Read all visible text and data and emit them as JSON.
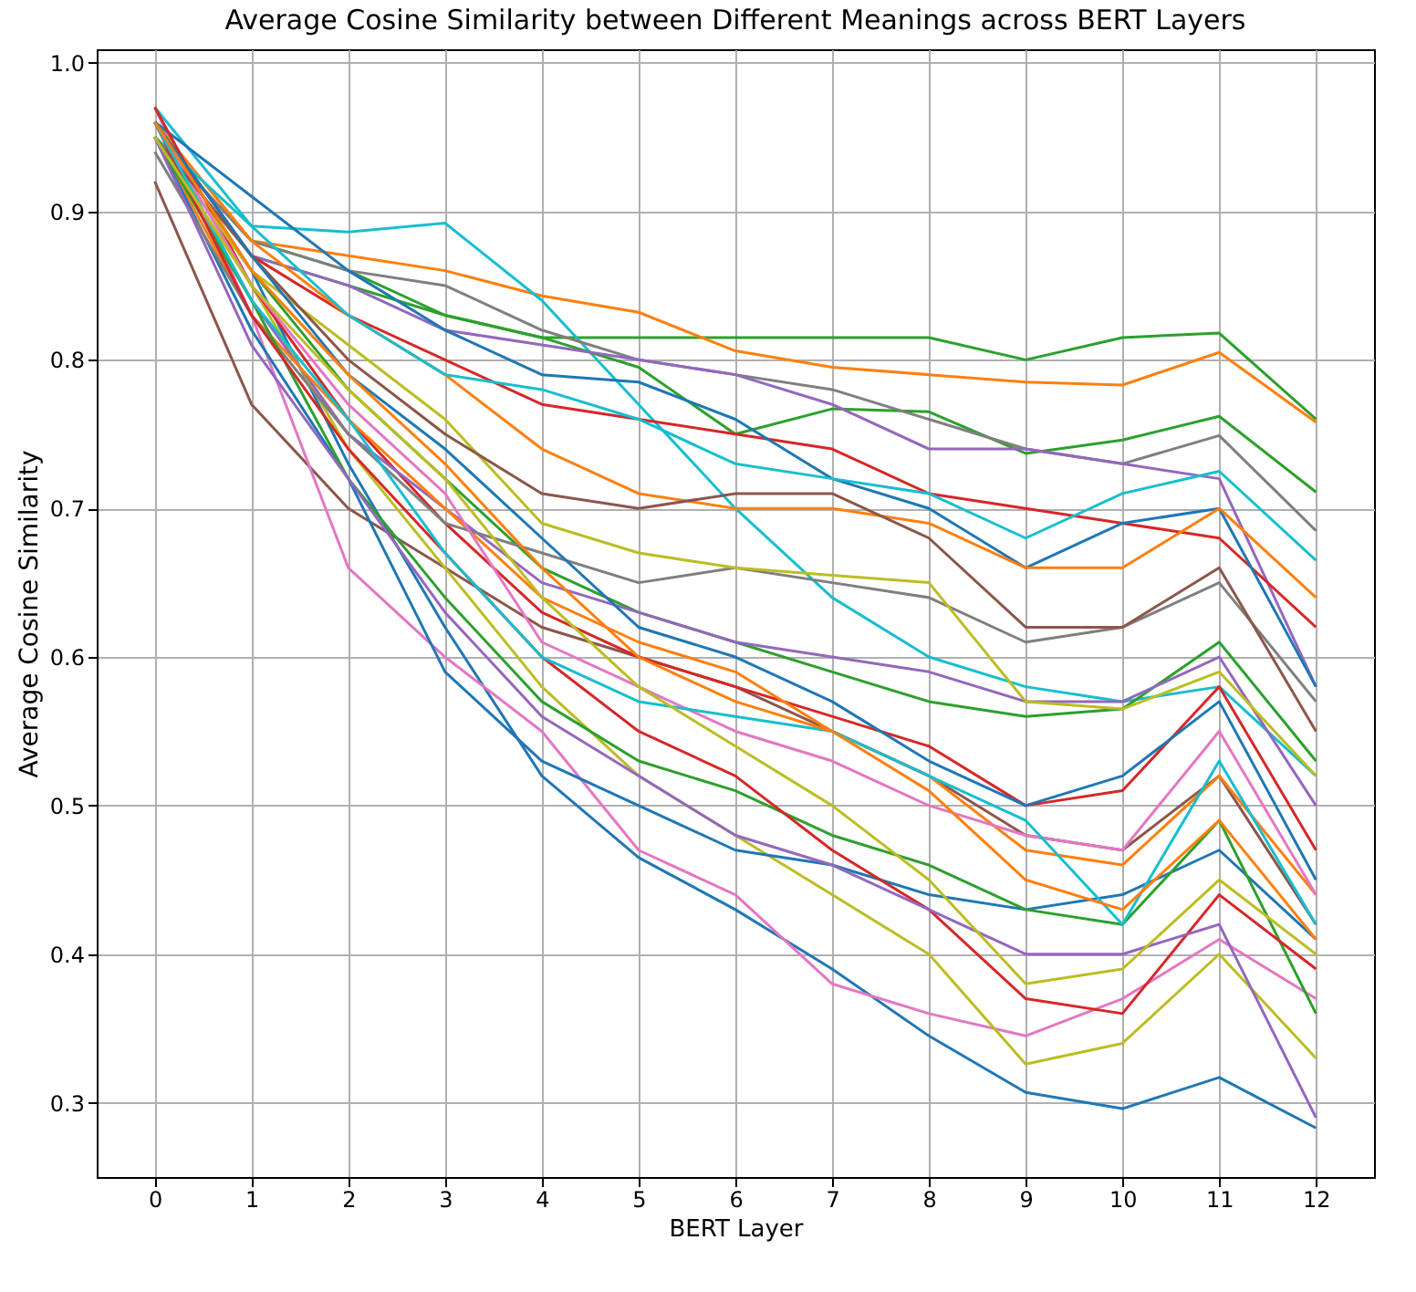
{
  "chart_data": {
    "type": "line",
    "title": "Average Cosine Similarity between Different Meanings across BERT Layers",
    "xlabel": "BERT Layer",
    "ylabel": "Average Cosine Similarity",
    "x": [
      0,
      1,
      2,
      3,
      4,
      5,
      6,
      7,
      8,
      9,
      10,
      11,
      12
    ],
    "xlim": [
      -0.6,
      12.6
    ],
    "xticks": [
      0,
      1,
      2,
      3,
      4,
      5,
      6,
      7,
      8,
      9,
      10,
      11,
      12
    ],
    "ylim": [
      0.25,
      1.009
    ],
    "yticks": [
      0.3,
      0.4,
      0.5,
      0.6,
      0.7,
      0.8,
      0.9,
      {
        "value": 1,
        "label": "1.0"
      }
    ],
    "grid": true,
    "legend": false,
    "series": [
      {
        "color": "#2ca02c",
        "values": [
          0.95,
          0.88,
          0.86,
          0.83,
          0.815,
          0.815,
          0.815,
          0.815,
          0.815,
          0.8,
          0.815,
          0.818,
          0.76
        ]
      },
      {
        "color": "#ff7f0e",
        "values": [
          0.96,
          0.88,
          0.87,
          0.86,
          0.843,
          0.832,
          0.806,
          0.795,
          0.79,
          0.785,
          0.783,
          0.805,
          0.758
        ]
      },
      {
        "color": "#17becf",
        "values": [
          0.97,
          0.89,
          0.886,
          0.892,
          0.84,
          0.77,
          0.7,
          0.64,
          0.6,
          0.58,
          0.57,
          0.58,
          0.52
        ]
      },
      {
        "color": "#1f77b4",
        "values": [
          0.96,
          0.86,
          0.73,
          0.62,
          0.52,
          0.465,
          0.43,
          0.39,
          0.345,
          0.307,
          0.296,
          0.317,
          0.283
        ]
      },
      {
        "color": "#2ca02c",
        "values": [
          0.95,
          0.87,
          0.85,
          0.83,
          0.815,
          0.795,
          0.75,
          0.767,
          0.765,
          0.737,
          0.746,
          0.762,
          0.711
        ]
      },
      {
        "color": "#7f7f7f",
        "values": [
          0.95,
          0.88,
          0.86,
          0.85,
          0.82,
          0.8,
          0.79,
          0.78,
          0.76,
          0.74,
          0.73,
          0.749,
          0.685
        ]
      },
      {
        "color": "#9467bd",
        "values": [
          0.96,
          0.87,
          0.85,
          0.82,
          0.81,
          0.8,
          0.79,
          0.77,
          0.74,
          0.74,
          0.73,
          0.72,
          0.58
        ]
      },
      {
        "color": "#d62728",
        "values": [
          0.96,
          0.87,
          0.83,
          0.8,
          0.77,
          0.76,
          0.75,
          0.74,
          0.71,
          0.7,
          0.69,
          0.68,
          0.62
        ]
      },
      {
        "color": "#8c564b",
        "values": [
          0.92,
          0.77,
          0.7,
          0.66,
          0.62,
          0.6,
          0.58,
          0.55,
          0.52,
          0.48,
          0.47,
          0.52,
          0.42
        ]
      },
      {
        "color": "#e377c2",
        "values": [
          0.97,
          0.83,
          0.66,
          0.6,
          0.55,
          0.47,
          0.44,
          0.38,
          0.36,
          0.345,
          0.37,
          0.41,
          0.37
        ]
      },
      {
        "color": "#bcbd22",
        "values": [
          0.95,
          0.85,
          0.74,
          0.66,
          0.58,
          0.52,
          0.48,
          0.44,
          0.4,
          0.326,
          0.34,
          0.4,
          0.33
        ]
      },
      {
        "color": "#1f77b4",
        "values": [
          0.96,
          0.91,
          0.86,
          0.82,
          0.79,
          0.785,
          0.76,
          0.72,
          0.7,
          0.66,
          0.69,
          0.7,
          0.58
        ]
      },
      {
        "color": "#ff7f0e",
        "values": [
          0.96,
          0.88,
          0.83,
          0.79,
          0.74,
          0.71,
          0.7,
          0.7,
          0.69,
          0.66,
          0.66,
          0.7,
          0.64
        ]
      },
      {
        "color": "#17becf",
        "values": [
          0.95,
          0.89,
          0.83,
          0.79,
          0.78,
          0.76,
          0.73,
          0.72,
          0.71,
          0.68,
          0.71,
          0.725,
          0.665
        ]
      },
      {
        "color": "#2ca02c",
        "values": [
          0.95,
          0.86,
          0.78,
          0.72,
          0.66,
          0.63,
          0.61,
          0.59,
          0.57,
          0.56,
          0.565,
          0.61,
          0.53
        ]
      },
      {
        "color": "#d62728",
        "values": [
          0.97,
          0.85,
          0.76,
          0.69,
          0.63,
          0.6,
          0.58,
          0.56,
          0.54,
          0.5,
          0.51,
          0.58,
          0.47
        ]
      },
      {
        "color": "#9467bd",
        "values": [
          0.96,
          0.84,
          0.75,
          0.7,
          0.65,
          0.63,
          0.61,
          0.6,
          0.59,
          0.57,
          0.57,
          0.6,
          0.5
        ]
      },
      {
        "color": "#ff7f0e",
        "values": [
          0.95,
          0.83,
          0.76,
          0.7,
          0.64,
          0.61,
          0.59,
          0.55,
          0.52,
          0.47,
          0.46,
          0.52,
          0.44
        ]
      },
      {
        "color": "#1f77b4",
        "values": [
          0.95,
          0.82,
          0.72,
          0.59,
          0.53,
          0.5,
          0.47,
          0.46,
          0.44,
          0.43,
          0.44,
          0.47,
          0.41
        ]
      },
      {
        "color": "#7f7f7f",
        "values": [
          0.94,
          0.83,
          0.75,
          0.69,
          0.67,
          0.65,
          0.66,
          0.65,
          0.64,
          0.61,
          0.62,
          0.65,
          0.57
        ]
      },
      {
        "color": "#bcbd22",
        "values": [
          0.95,
          0.86,
          0.81,
          0.76,
          0.69,
          0.67,
          0.66,
          0.655,
          0.65,
          0.57,
          0.565,
          0.59,
          0.52
        ]
      },
      {
        "color": "#e377c2",
        "values": [
          0.96,
          0.85,
          0.77,
          0.71,
          0.61,
          0.58,
          0.55,
          0.53,
          0.5,
          0.48,
          0.47,
          0.55,
          0.44
        ]
      },
      {
        "color": "#8c564b",
        "values": [
          0.95,
          0.87,
          0.8,
          0.75,
          0.71,
          0.7,
          0.71,
          0.71,
          0.68,
          0.62,
          0.62,
          0.66,
          0.55
        ]
      },
      {
        "color": "#2ca02c",
        "values": [
          0.95,
          0.84,
          0.72,
          0.64,
          0.57,
          0.53,
          0.51,
          0.48,
          0.46,
          0.43,
          0.42,
          0.49,
          0.36
        ]
      },
      {
        "color": "#d62728",
        "values": [
          0.96,
          0.83,
          0.74,
          0.67,
          0.6,
          0.55,
          0.52,
          0.47,
          0.43,
          0.37,
          0.36,
          0.44,
          0.39
        ]
      },
      {
        "color": "#17becf",
        "values": [
          0.96,
          0.84,
          0.76,
          0.67,
          0.6,
          0.57,
          0.56,
          0.55,
          0.52,
          0.49,
          0.42,
          0.53,
          0.42
        ]
      },
      {
        "color": "#9467bd",
        "values": [
          0.95,
          0.81,
          0.72,
          0.63,
          0.56,
          0.52,
          0.48,
          0.46,
          0.43,
          0.4,
          0.4,
          0.42,
          0.29
        ]
      },
      {
        "color": "#1f77b4",
        "values": [
          0.96,
          0.87,
          0.79,
          0.74,
          0.68,
          0.62,
          0.6,
          0.57,
          0.53,
          0.5,
          0.52,
          0.57,
          0.45
        ]
      },
      {
        "color": "#ff7f0e",
        "values": [
          0.96,
          0.86,
          0.79,
          0.73,
          0.66,
          0.6,
          0.57,
          0.55,
          0.51,
          0.45,
          0.43,
          0.49,
          0.41
        ]
      },
      {
        "color": "#bcbd22",
        "values": [
          0.95,
          0.85,
          0.78,
          0.72,
          0.64,
          0.58,
          0.54,
          0.5,
          0.45,
          0.38,
          0.39,
          0.45,
          0.4
        ]
      }
    ]
  }
}
